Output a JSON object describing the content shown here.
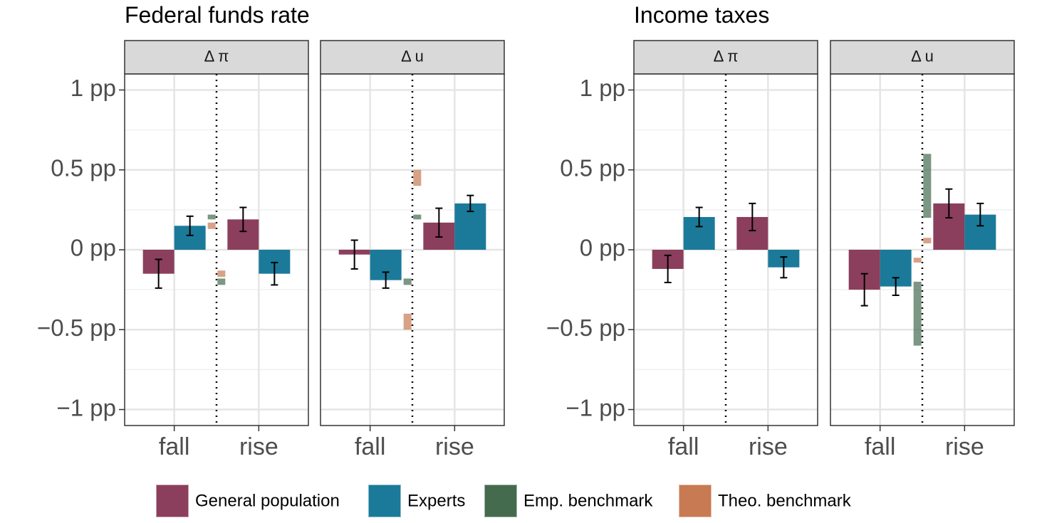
{
  "chart_data": {
    "type": "bar",
    "categories": [
      "fall",
      "rise"
    ],
    "ylim": [
      -1.1,
      1.1
    ],
    "yticks": [
      {
        "value": -1,
        "label": "−1 pp"
      },
      {
        "value": -0.5,
        "label": "−0.5 pp"
      },
      {
        "value": 0,
        "label": "0 pp"
      },
      {
        "value": 0.5,
        "label": "0.5 pp"
      },
      {
        "value": 1,
        "label": "1 pp"
      }
    ],
    "minor_yticks": [
      -0.75,
      -0.25,
      0.25,
      0.75
    ],
    "grid": true,
    "charts": [
      {
        "title": "Federal funds rate",
        "facets": [
          "Δ π",
          "Δ u"
        ]
      },
      {
        "title": "Income taxes",
        "facets": [
          "Δ π",
          "Δ u"
        ]
      }
    ],
    "series": [
      {
        "name": "General population",
        "color": "#8b3f5c",
        "values": [
          [
            [
              -0.15,
              0.19
            ],
            [
              -0.03,
              0.17
            ]
          ],
          [
            [
              -0.12,
              0.205
            ],
            [
              -0.25,
              0.29
            ]
          ]
        ],
        "errors": [
          [
            [
              0.09,
              0.075
            ],
            [
              0.09,
              0.09
            ]
          ],
          [
            [
              0.085,
              0.085
            ],
            [
              0.1,
              0.09
            ]
          ]
        ]
      },
      {
        "name": "Experts",
        "color": "#1b7a99",
        "values": [
          [
            [
              0.15,
              -0.15
            ],
            [
              -0.19,
              0.29
            ]
          ],
          [
            [
              0.205,
              -0.11
            ],
            [
              -0.23,
              0.22
            ]
          ]
        ],
        "errors": [
          [
            [
              0.06,
              0.07
            ],
            [
              0.05,
              0.05
            ]
          ],
          [
            [
              0.06,
              0.065
            ],
            [
              0.055,
              0.07
            ]
          ]
        ]
      },
      {
        "name": "Emp. benchmark",
        "color": "#456b4f",
        "low": [
          [
            [
              0.19,
              -0.22
            ],
            [
              -0.22,
              0.19
            ]
          ],
          [
            [
              null,
              null
            ],
            [
              -0.6,
              0.2
            ]
          ]
        ],
        "high": [
          [
            [
              0.22,
              -0.18
            ],
            [
              -0.18,
              0.22
            ]
          ],
          [
            [
              null,
              null
            ],
            [
              -0.2,
              0.6
            ]
          ]
        ]
      },
      {
        "name": "Theo. benchmark",
        "color": "#c87a53",
        "low": [
          [
            [
              0.13,
              -0.17
            ],
            [
              -0.5,
              0.4
            ]
          ],
          [
            [
              null,
              null
            ],
            [
              -0.08,
              0.04
            ]
          ]
        ],
        "high": [
          [
            [
              0.17,
              -0.13
            ],
            [
              -0.4,
              0.5
            ]
          ],
          [
            [
              null,
              null
            ],
            [
              -0.05,
              0.075
            ]
          ]
        ]
      }
    ]
  }
}
